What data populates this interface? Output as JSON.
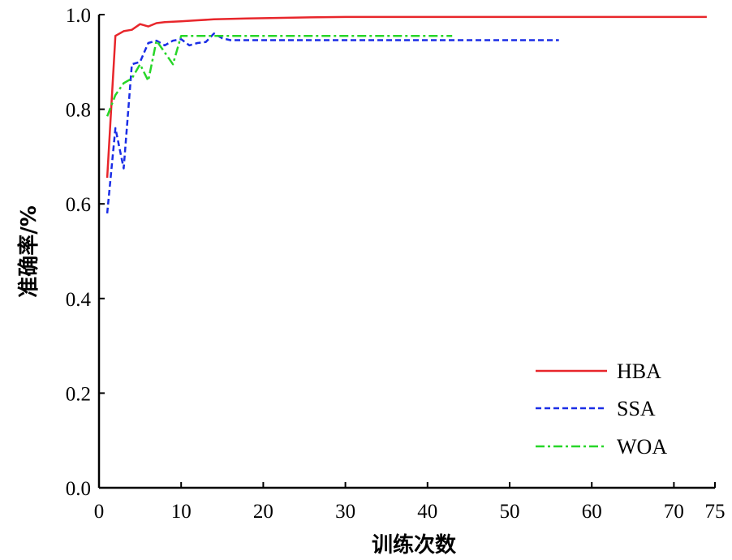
{
  "chart_data": {
    "type": "line",
    "xlabel": "训练次数",
    "ylabel": "准确率/%",
    "xlim": [
      0,
      75
    ],
    "ylim": [
      0.0,
      1.0
    ],
    "xticks": [
      0,
      10,
      20,
      30,
      40,
      50,
      60,
      70,
      75
    ],
    "yticks": [
      0.0,
      0.2,
      0.4,
      0.6,
      0.8,
      1.0
    ],
    "xtick_labels": [
      "0",
      "10",
      "20",
      "30",
      "40",
      "50",
      "60",
      "70",
      "75"
    ],
    "ytick_labels": [
      "0.0",
      "0.2",
      "0.4",
      "0.6",
      "0.8",
      "1.0"
    ],
    "grid": false,
    "legend_position": "bottom-right",
    "series": [
      {
        "name": "HBA",
        "color": "#e8262b",
        "dash": "solid",
        "x": [
          1,
          2,
          3,
          4,
          5,
          6,
          7,
          8,
          10,
          12,
          14,
          18,
          25,
          30,
          40,
          50,
          60,
          74
        ],
        "y": [
          0.655,
          0.955,
          0.965,
          0.968,
          0.98,
          0.975,
          0.982,
          0.984,
          0.986,
          0.988,
          0.99,
          0.992,
          0.994,
          0.995,
          0.995,
          0.995,
          0.995,
          0.995
        ]
      },
      {
        "name": "SSA",
        "color": "#1a2de6",
        "dash": "dashed",
        "x": [
          1,
          2,
          3,
          4,
          5,
          6,
          7,
          8,
          9,
          10,
          11,
          12,
          13,
          14,
          15,
          16,
          20,
          30,
          40,
          56
        ],
        "y": [
          0.58,
          0.76,
          0.675,
          0.895,
          0.9,
          0.94,
          0.945,
          0.935,
          0.945,
          0.948,
          0.935,
          0.94,
          0.942,
          0.96,
          0.95,
          0.946,
          0.946,
          0.946,
          0.946,
          0.946
        ]
      },
      {
        "name": "WOA",
        "color": "#27d628",
        "dash": "dashdot",
        "x": [
          1,
          2,
          3,
          4,
          5,
          6,
          7,
          8,
          9,
          10,
          11,
          12,
          13,
          14,
          16,
          20,
          30,
          43
        ],
        "y": [
          0.785,
          0.83,
          0.855,
          0.865,
          0.895,
          0.86,
          0.945,
          0.92,
          0.895,
          0.955,
          0.955,
          0.955,
          0.955,
          0.955,
          0.955,
          0.955,
          0.955,
          0.955
        ]
      }
    ]
  }
}
